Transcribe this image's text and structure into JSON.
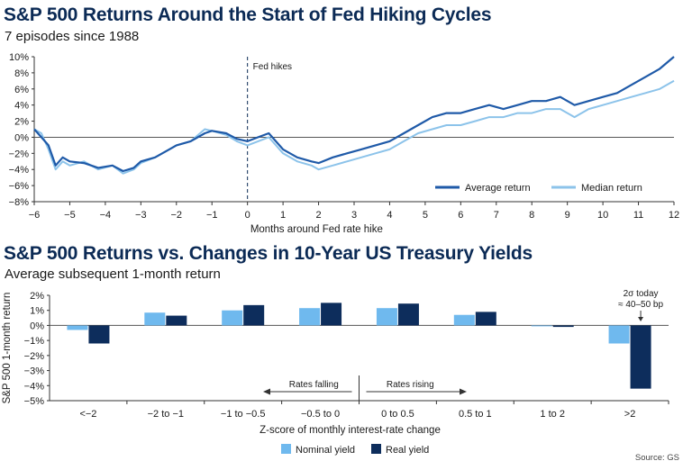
{
  "colors": {
    "average": "#1f5aa8",
    "median": "#8cc3ea",
    "nominal": "#6fb9ee",
    "real": "#0d2d5c",
    "title": "#0b2a55"
  },
  "source": "Source: GS",
  "chart_data": [
    {
      "type": "line",
      "title": "S&P 500 Returns Around the Start of Fed Hiking Cycles",
      "subtitle": "7 episodes since 1988",
      "xlabel": "Months around Fed rate hike",
      "ylabel": "",
      "xlim": [
        -6,
        12
      ],
      "ylim": [
        -8,
        10
      ],
      "x_ticks": [
        -6,
        -5,
        -4,
        -3,
        -2,
        -1,
        0,
        1,
        2,
        3,
        4,
        5,
        6,
        7,
        8,
        9,
        10,
        11,
        12
      ],
      "y_ticks": [
        -8,
        -6,
        -4,
        -2,
        0,
        2,
        4,
        6,
        8,
        10
      ],
      "y_tick_labels": [
        "−8%",
        "−6%",
        "−4%",
        "−2%",
        "0%",
        "2%",
        "4%",
        "6%",
        "8%",
        "10%"
      ],
      "x_tick_labels": [
        "−6",
        "−5",
        "−4",
        "−3",
        "−2",
        "−1",
        "0",
        "1",
        "2",
        "3",
        "4",
        "5",
        "6",
        "7",
        "8",
        "9",
        "10",
        "11",
        "12"
      ],
      "annotation": "Fed hikes",
      "annotation_x": 0,
      "legend_position": "bottom-right",
      "series": [
        {
          "name": "Average return",
          "x": [
            -6,
            -5.8,
            -5.6,
            -5.4,
            -5.2,
            -5,
            -4.6,
            -4.2,
            -3.8,
            -3.5,
            -3.2,
            -3,
            -2.6,
            -2.2,
            -2,
            -1.6,
            -1.2,
            -1,
            -0.6,
            -0.3,
            0,
            0.3,
            0.6,
            1,
            1.4,
            1.8,
            2,
            2.4,
            2.8,
            3.2,
            3.6,
            4,
            4.4,
            4.8,
            5.2,
            5.6,
            6,
            6.4,
            6.8,
            7.2,
            7.6,
            8,
            8.4,
            8.8,
            9.2,
            9.6,
            10,
            10.4,
            10.8,
            11.2,
            11.6,
            12
          ],
          "y": [
            1,
            0,
            -1,
            -3.5,
            -2.5,
            -3,
            -3.2,
            -3.8,
            -3.5,
            -4.2,
            -3.8,
            -3,
            -2.5,
            -1.5,
            -1,
            -0.5,
            0.5,
            0.8,
            0.5,
            -0.2,
            -0.5,
            0,
            0.5,
            -1.5,
            -2.5,
            -3,
            -3.2,
            -2.5,
            -2,
            -1.5,
            -1,
            -0.5,
            0.5,
            1.5,
            2.5,
            3,
            3,
            3.5,
            4,
            3.5,
            4,
            4.5,
            4.5,
            5,
            4,
            4.5,
            5,
            5.5,
            6.5,
            7.5,
            8.5,
            10
          ]
        },
        {
          "name": "Median return",
          "x": [
            -6,
            -5.8,
            -5.6,
            -5.4,
            -5.2,
            -5,
            -4.6,
            -4.2,
            -3.8,
            -3.5,
            -3.2,
            -3,
            -2.6,
            -2.2,
            -2,
            -1.6,
            -1.2,
            -1,
            -0.6,
            -0.3,
            0,
            0.3,
            0.6,
            1,
            1.4,
            1.8,
            2,
            2.4,
            2.8,
            3.2,
            3.6,
            4,
            4.4,
            4.8,
            5.2,
            5.6,
            6,
            6.4,
            6.8,
            7.2,
            7.6,
            8,
            8.4,
            8.8,
            9.2,
            9.6,
            10,
            10.4,
            10.8,
            11.2,
            11.6,
            12
          ],
          "y": [
            1,
            0.5,
            -1.5,
            -4,
            -3,
            -3.5,
            -3,
            -4,
            -3.5,
            -4.5,
            -4,
            -3.2,
            -2.5,
            -1.5,
            -1,
            -0.5,
            1,
            0.8,
            0.3,
            -0.5,
            -1,
            -0.5,
            0,
            -2,
            -3,
            -3.5,
            -4,
            -3.5,
            -3,
            -2.5,
            -2,
            -1.5,
            -0.5,
            0.5,
            1,
            1.5,
            1.5,
            2,
            2.5,
            2.5,
            3,
            3,
            3.5,
            3.5,
            2.5,
            3.5,
            4,
            4.5,
            5,
            5.5,
            6,
            7
          ]
        }
      ]
    },
    {
      "type": "bar",
      "title": "S&P 500 Returns vs. Changes in 10-Year US Treasury Yields",
      "subtitle": "Average subsequent 1-month return",
      "xlabel": "Z-score of monthly interest-rate change",
      "ylabel": "S&P 500 1-month return",
      "ylim": [
        -5,
        2
      ],
      "y_ticks": [
        -5,
        -4,
        -3,
        -2,
        -1,
        0,
        1,
        2
      ],
      "y_tick_labels": [
        "−5%",
        "−4%",
        "−3%",
        "−2%",
        "−1%",
        "0%",
        "1%",
        "2%"
      ],
      "categories": [
        "<−2",
        "−2 to −1",
        "−1 to −0.5",
        "−0.5 to 0",
        "0 to 0.5",
        "0.5 to 1",
        "1 to 2",
        ">2"
      ],
      "legend_position": "bottom-center",
      "series": [
        {
          "name": "Nominal yield",
          "values": [
            -0.3,
            0.85,
            1.0,
            1.15,
            1.15,
            0.7,
            -0.05,
            -1.2
          ]
        },
        {
          "name": "Real yield",
          "values": [
            -1.2,
            0.65,
            1.35,
            1.5,
            1.45,
            0.9,
            -0.1,
            -4.2
          ]
        }
      ],
      "annotations": {
        "falling": "Rates falling",
        "rising": "Rates rising",
        "today_line1": "2σ today",
        "today_line2": "≈ 40–50 bp"
      }
    }
  ]
}
